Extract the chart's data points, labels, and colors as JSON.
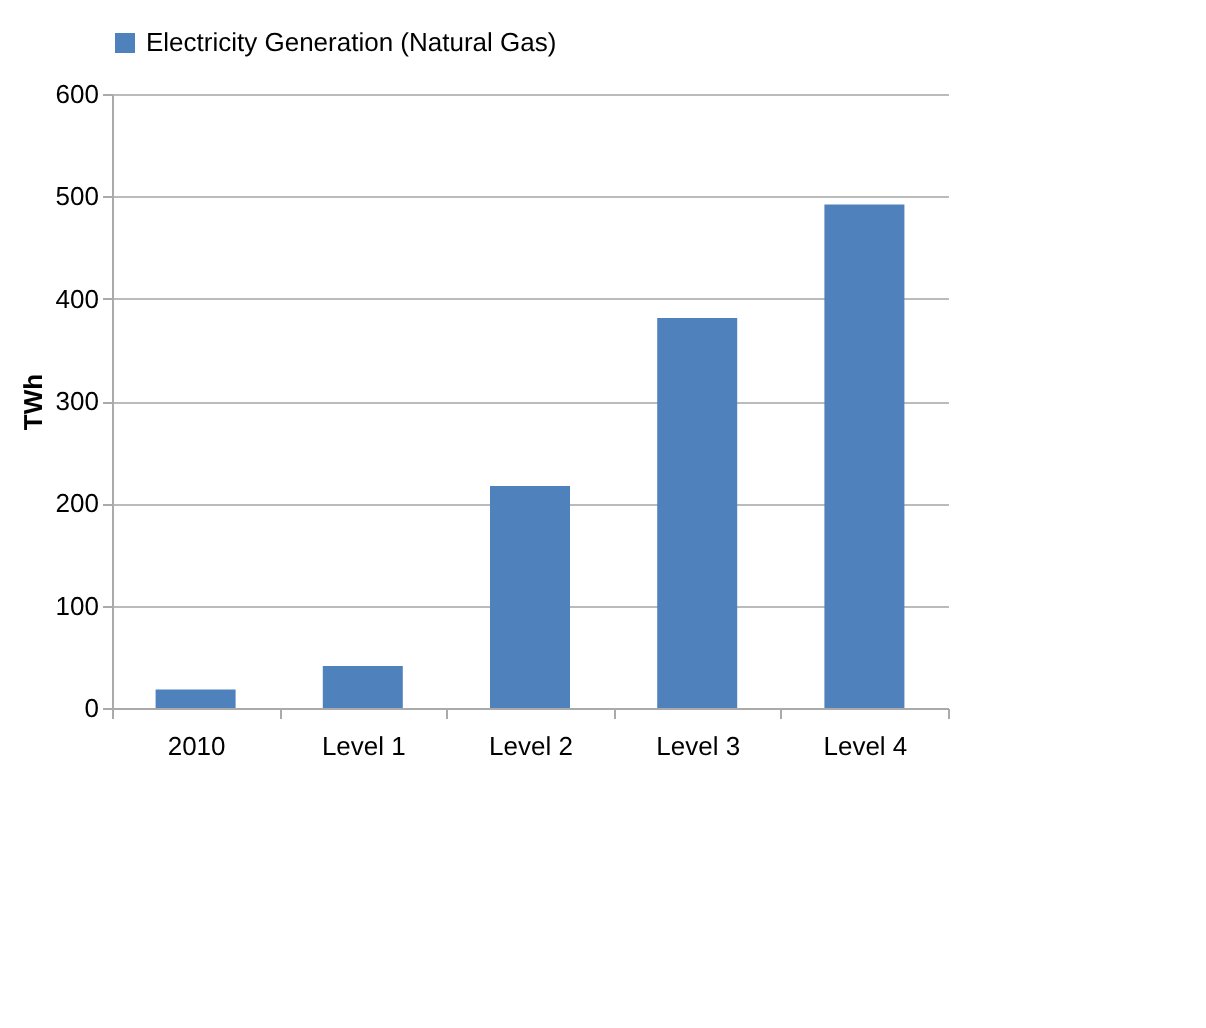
{
  "chart_data": {
    "type": "bar",
    "ylabel": "TWh",
    "categories": [
      "2010",
      "Level 1",
      "Level 2",
      "Level 3",
      "Level 4"
    ],
    "series": [
      {
        "name": "Electricity Generation (Natural Gas)",
        "color": "#4f81bd",
        "values": [
          18,
          41,
          217,
          381,
          492
        ]
      }
    ],
    "ylim": [
      0,
      600
    ],
    "yticks": [
      0,
      100,
      200,
      300,
      400,
      500,
      600
    ],
    "grid": "y",
    "legend": "top"
  }
}
